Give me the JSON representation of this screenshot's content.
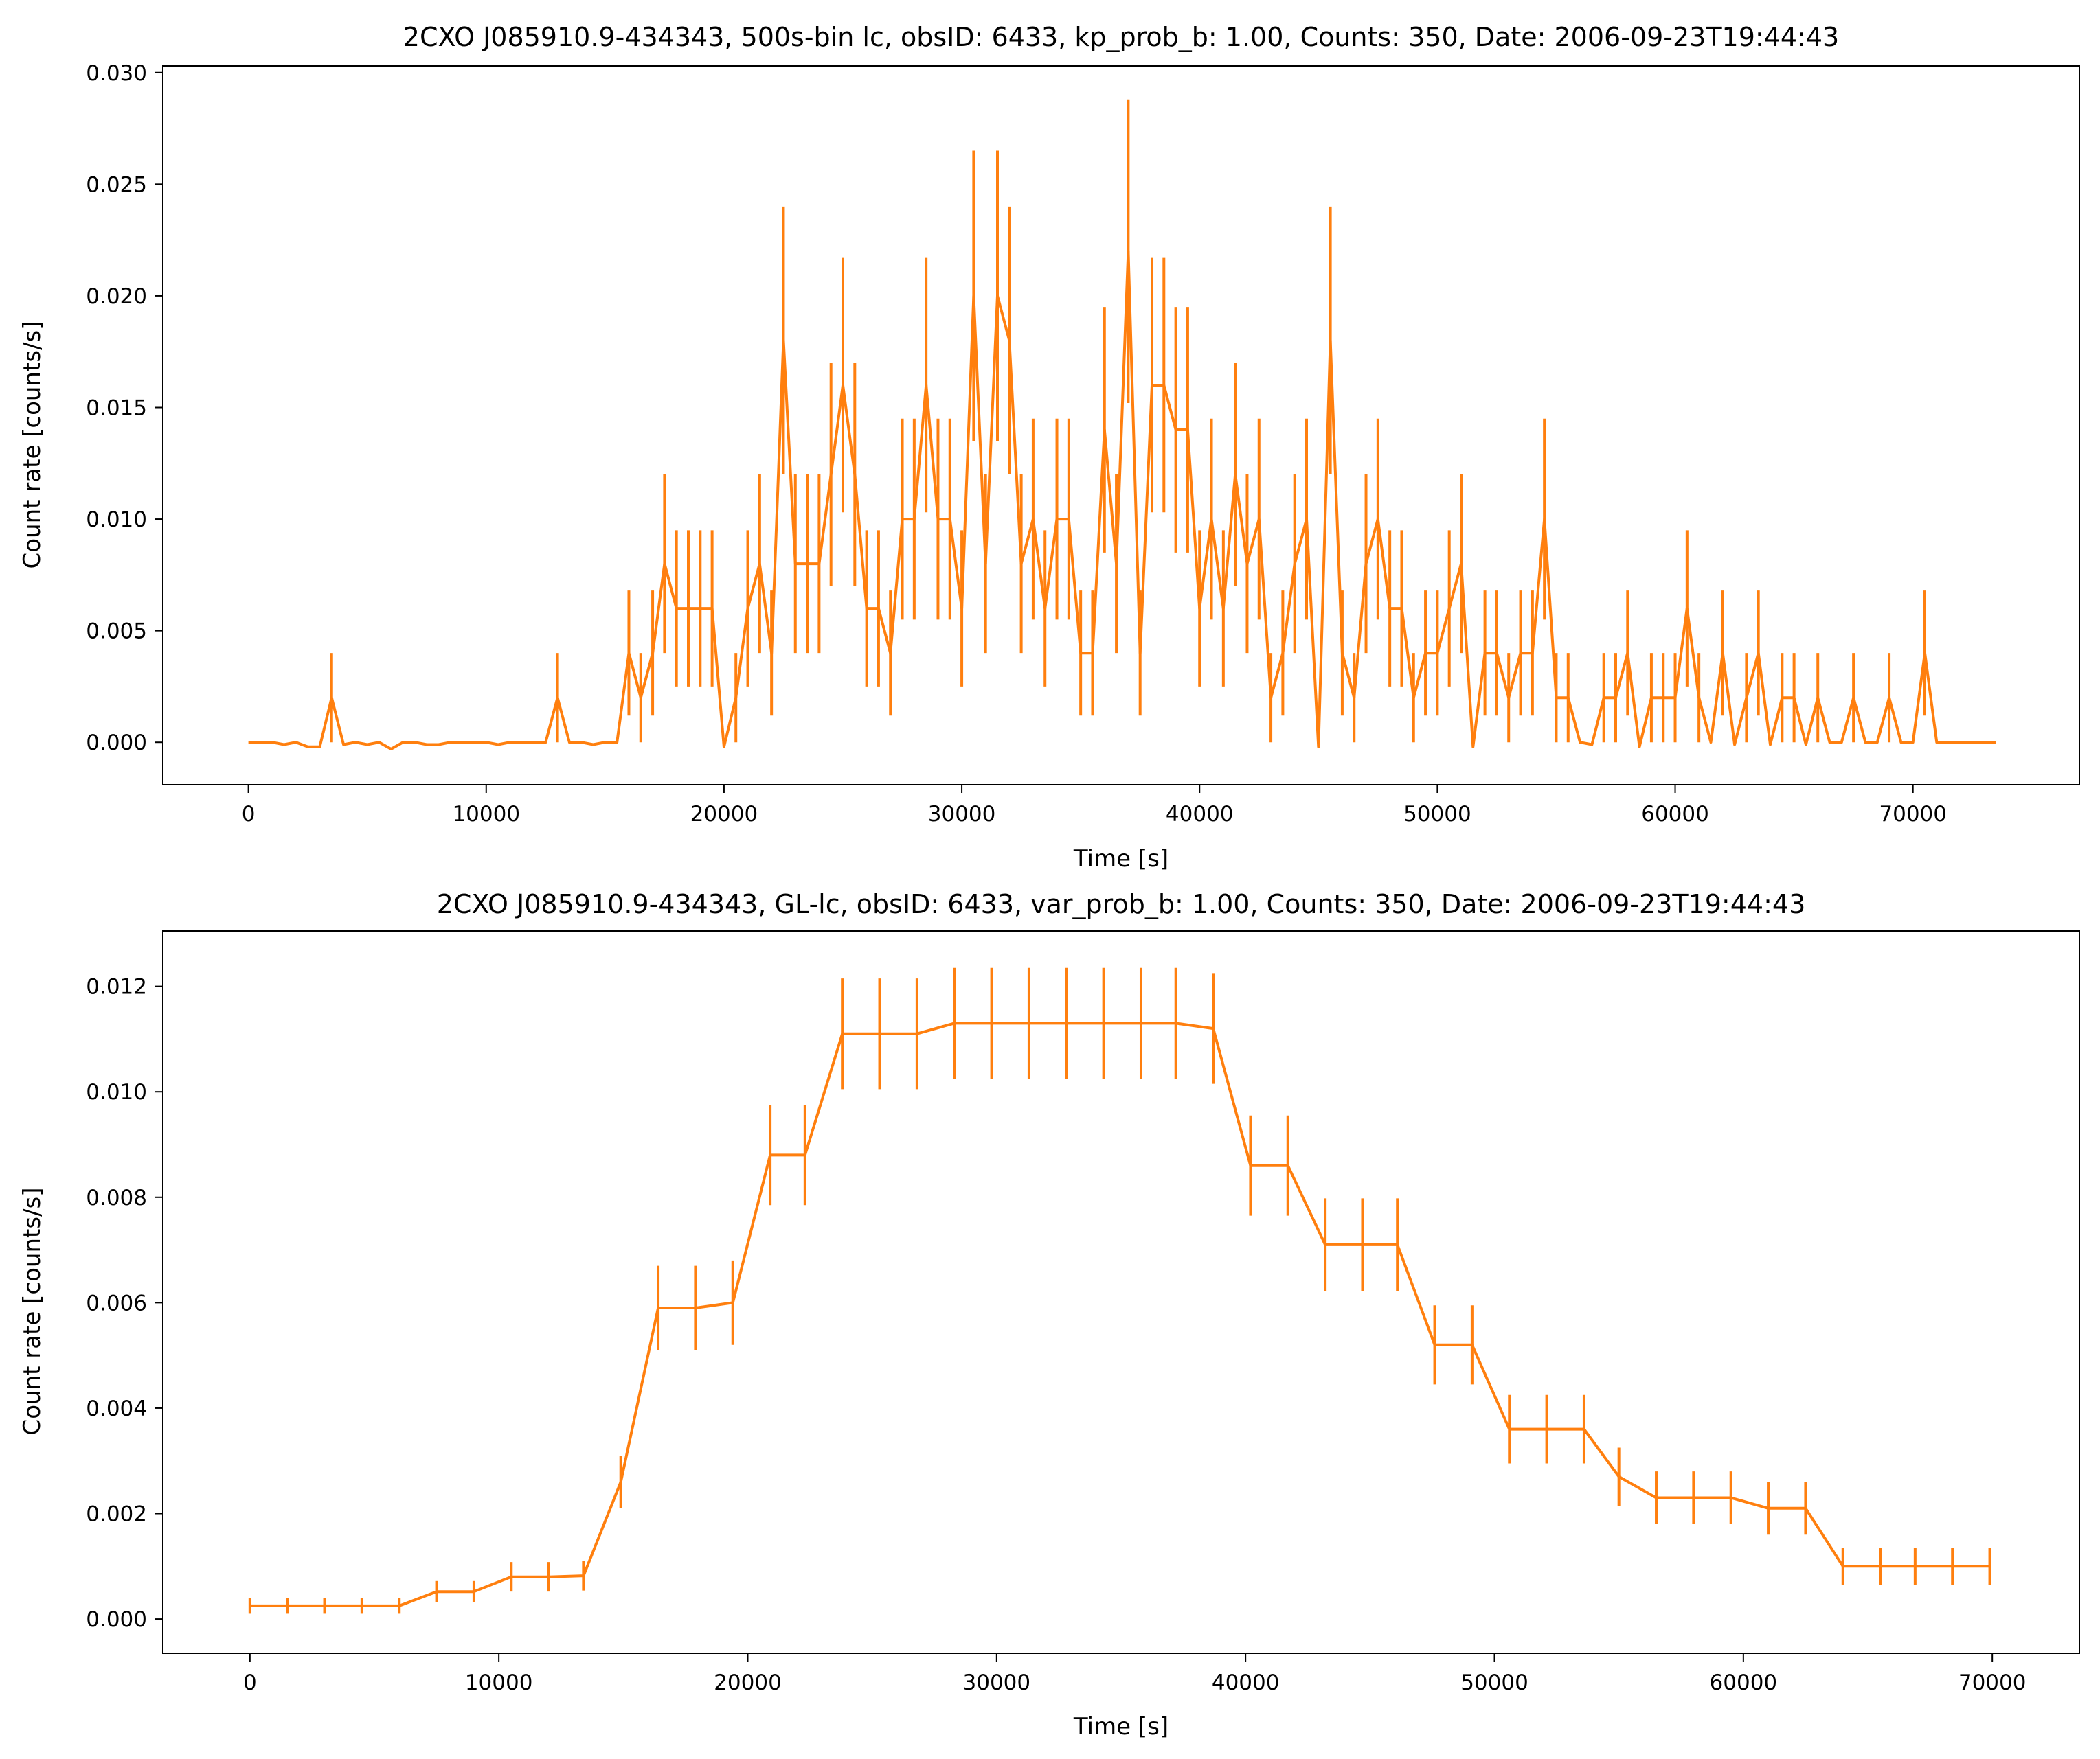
{
  "chart_data": [
    {
      "type": "line",
      "title": "2CXO J085910.9-434343, 500s-bin lc, obsID: 6433, kp_prob_b: 1.00, Counts: 350, Date: 2006-09-23T19:44:43",
      "xlabel": "Time [s]",
      "ylabel": "Count rate [counts/s]",
      "xlim": [
        -3600,
        77000
      ],
      "ylim": [
        -0.0019,
        0.0303
      ],
      "xticks": [
        0,
        10000,
        20000,
        30000,
        40000,
        50000,
        60000,
        70000
      ],
      "xtick_labels": [
        "0",
        "10000",
        "20000",
        "30000",
        "40000",
        "50000",
        "60000",
        "70000"
      ],
      "yticks": [
        0.0,
        0.005,
        0.01,
        0.015,
        0.02,
        0.025,
        0.03
      ],
      "ytick_labels": [
        "0.000",
        "0.005",
        "0.010",
        "0.015",
        "0.020",
        "0.025",
        "0.030"
      ],
      "grid": false,
      "color": "#ff7f0e",
      "series": [
        {
          "x": [
            0,
            500,
            1000,
            1500,
            2000,
            2500,
            3000,
            3500,
            4000,
            4500,
            5000,
            5500,
            6000,
            6500,
            7000,
            7500,
            8000,
            8500,
            9000,
            9500,
            10000,
            10500,
            11000,
            11500,
            12000,
            12500,
            13000,
            13500,
            14000,
            14500,
            15000,
            15500,
            16000,
            16500,
            17000,
            17500,
            18000,
            18500,
            19000,
            19500,
            20000,
            20500,
            21000,
            21500,
            22000,
            22500,
            23000,
            23500,
            24000,
            24500,
            25000,
            25500,
            26000,
            26500,
            27000,
            27500,
            28000,
            28500,
            29000,
            29500,
            30000,
            30500,
            31000,
            31500,
            32000,
            32500,
            33000,
            33500,
            34000,
            34500,
            35000,
            35500,
            36000,
            36500,
            37000,
            37500,
            38000,
            38500,
            39000,
            39500,
            40000,
            40500,
            41000,
            41500,
            42000,
            42500,
            43000,
            43500,
            44000,
            44500,
            45000,
            45500,
            46000,
            46500,
            47000,
            47500,
            48000,
            48500,
            49000,
            49500,
            50000,
            50500,
            51000,
            51500,
            52000,
            52500,
            53000,
            53500,
            54000,
            54500,
            55000,
            55500,
            56000,
            56500,
            57000,
            57500,
            58000,
            58500,
            59000,
            59500,
            60000,
            60500,
            61000,
            61500,
            62000,
            62500,
            63000,
            63500,
            64000,
            64500,
            65000,
            65500,
            66000,
            66500,
            67000,
            67500,
            68000,
            68500,
            69000,
            69500,
            70000,
            70500,
            71000,
            71500,
            72000,
            72500,
            73000,
            73500
          ],
          "y": [
            0.0,
            0.0,
            0.0,
            -0.0001,
            0.0,
            -0.0002,
            -0.0002,
            0.002,
            -0.0001,
            0.0,
            -0.0001,
            0.0,
            -0.0003,
            0.0,
            0.0,
            -0.0001,
            -0.0001,
            0.0,
            0.0,
            0.0,
            0.0,
            -0.0001,
            0.0,
            0.0,
            0.0,
            0.0,
            0.002,
            0.0,
            0.0,
            -0.0001,
            0.0,
            0.0,
            0.004,
            0.002,
            0.004,
            0.008,
            0.006,
            0.006,
            0.006,
            0.006,
            -0.0002,
            0.002,
            0.006,
            0.008,
            0.004,
            0.018,
            0.008,
            0.008,
            0.008,
            0.012,
            0.016,
            0.012,
            0.006,
            0.006,
            0.004,
            0.01,
            0.01,
            0.016,
            0.01,
            0.01,
            0.006,
            0.02,
            0.008,
            0.02,
            0.018,
            0.008,
            0.01,
            0.006,
            0.01,
            0.01,
            0.004,
            0.004,
            0.014,
            0.008,
            0.022,
            0.004,
            0.016,
            0.016,
            0.014,
            0.014,
            0.006,
            0.01,
            0.006,
            0.012,
            0.008,
            0.01,
            0.002,
            0.004,
            0.008,
            0.01,
            -0.0002,
            0.018,
            0.004,
            0.002,
            0.008,
            0.01,
            0.006,
            0.006,
            0.002,
            0.004,
            0.004,
            0.006,
            0.008,
            -0.0002,
            0.004,
            0.004,
            0.002,
            0.004,
            0.004,
            0.01,
            0.002,
            0.002,
            0.0,
            -0.0001,
            0.002,
            0.002,
            0.004,
            -0.0002,
            0.002,
            0.002,
            0.002,
            0.006,
            0.002,
            0.0,
            0.004,
            -0.0001,
            0.002,
            0.004,
            -0.0001,
            0.002,
            0.002,
            -0.0001,
            0.002,
            0.0,
            0.0,
            0.002,
            0.0,
            0.0,
            0.002,
            0.0,
            0.0,
            0.004,
            0.0,
            0.0,
            0.0,
            0.0,
            0.0,
            0.0
          ],
          "err": [
            0.0,
            0.0,
            0.0,
            0.0,
            0.0,
            0.0,
            0.0,
            0.002,
            0.0,
            0.0,
            0.0,
            0.0,
            0.0,
            0.0,
            0.0,
            0.0,
            0.0,
            0.0,
            0.0,
            0.0,
            0.0,
            0.0,
            0.0,
            0.0,
            0.0,
            0.0,
            0.002,
            0.0,
            0.0,
            0.0,
            0.0,
            0.0,
            0.0028,
            0.002,
            0.0028,
            0.004,
            0.0035,
            0.0035,
            0.0035,
            0.0035,
            0.0,
            0.002,
            0.0035,
            0.004,
            0.0028,
            0.006,
            0.004,
            0.004,
            0.004,
            0.005,
            0.0057,
            0.005,
            0.0035,
            0.0035,
            0.0028,
            0.0045,
            0.0045,
            0.0057,
            0.0045,
            0.0045,
            0.0035,
            0.0065,
            0.004,
            0.0065,
            0.006,
            0.004,
            0.0045,
            0.0035,
            0.0045,
            0.0045,
            0.0028,
            0.0028,
            0.0055,
            0.004,
            0.0068,
            0.0028,
            0.0057,
            0.0057,
            0.0055,
            0.0055,
            0.0035,
            0.0045,
            0.0035,
            0.005,
            0.004,
            0.0045,
            0.002,
            0.0028,
            0.004,
            0.0045,
            0.0,
            0.006,
            0.0028,
            0.002,
            0.004,
            0.0045,
            0.0035,
            0.0035,
            0.002,
            0.0028,
            0.0028,
            0.0035,
            0.004,
            0.0,
            0.0028,
            0.0028,
            0.002,
            0.0028,
            0.0028,
            0.0045,
            0.002,
            0.002,
            0.0,
            0.0,
            0.002,
            0.002,
            0.0028,
            0.0,
            0.002,
            0.002,
            0.002,
            0.0035,
            0.002,
            0.0,
            0.0028,
            0.0,
            0.002,
            0.0028,
            0.0,
            0.002,
            0.002,
            0.0,
            0.002,
            0.0,
            0.0,
            0.002,
            0.0,
            0.0,
            0.002,
            0.0,
            0.0,
            0.0028,
            0.0,
            0.0,
            0.0,
            0.0,
            0.0,
            0.0
          ]
        }
      ]
    },
    {
      "type": "line",
      "title": "2CXO J085910.9-434343, GL-lc, obsID: 6433, var_prob_b: 1.00, Counts: 350, Date: 2006-09-23T19:44:43",
      "xlabel": "Time [s]",
      "ylabel": "Count rate [counts/s]",
      "xlim": [
        -3500,
        73500
      ],
      "ylim": [
        -0.00065,
        0.01305
      ],
      "xticks": [
        0,
        10000,
        20000,
        30000,
        40000,
        50000,
        60000,
        70000
      ],
      "xtick_labels": [
        "0",
        "10000",
        "20000",
        "30000",
        "40000",
        "50000",
        "60000",
        "70000"
      ],
      "yticks": [
        0.0,
        0.002,
        0.004,
        0.006,
        0.008,
        0.01,
        0.012
      ],
      "ytick_labels": [
        "0.000",
        "0.002",
        "0.004",
        "0.006",
        "0.008",
        "0.010",
        "0.012"
      ],
      "grid": false,
      "color": "#ff7f0e",
      "series": [
        {
          "x": [
            0,
            1500,
            3000,
            4500,
            6000,
            7500,
            9000,
            10500,
            12000,
            13400,
            14900,
            16400,
            17900,
            19400,
            20900,
            22300,
            23800,
            25300,
            26800,
            28300,
            29800,
            31300,
            32800,
            34300,
            35800,
            37200,
            38700,
            40200,
            41700,
            43200,
            44700,
            46100,
            47600,
            49100,
            50600,
            52100,
            53600,
            55000,
            56500,
            58000,
            59500,
            61000,
            62500,
            64000,
            65500,
            66900,
            68400,
            69900
          ],
          "y": [
            0.00025,
            0.00025,
            0.00025,
            0.00025,
            0.00025,
            0.00052,
            0.00052,
            0.0008,
            0.0008,
            0.00082,
            0.0026,
            0.0059,
            0.0059,
            0.006,
            0.0088,
            0.0088,
            0.0111,
            0.0111,
            0.0111,
            0.0113,
            0.0113,
            0.0113,
            0.0113,
            0.0113,
            0.0113,
            0.0113,
            0.0112,
            0.0086,
            0.0086,
            0.0071,
            0.0071,
            0.0071,
            0.0052,
            0.0052,
            0.0036,
            0.0036,
            0.0036,
            0.0027,
            0.0023,
            0.0023,
            0.0023,
            0.0021,
            0.0021,
            0.001,
            0.001,
            0.001,
            0.001,
            0.001
          ],
          "err": [
            0.00015,
            0.00015,
            0.00015,
            0.00015,
            0.00015,
            0.0002,
            0.0002,
            0.00028,
            0.00028,
            0.00028,
            0.0005,
            0.0008,
            0.0008,
            0.0008,
            0.00095,
            0.00095,
            0.00105,
            0.00105,
            0.00105,
            0.00105,
            0.00105,
            0.00105,
            0.00105,
            0.00105,
            0.00105,
            0.00105,
            0.00105,
            0.00095,
            0.00095,
            0.00088,
            0.00088,
            0.00088,
            0.00075,
            0.00075,
            0.00065,
            0.00065,
            0.00065,
            0.00055,
            0.0005,
            0.0005,
            0.0005,
            0.0005,
            0.0005,
            0.00035,
            0.00035,
            0.00035,
            0.00035,
            0.00035
          ]
        }
      ]
    }
  ]
}
